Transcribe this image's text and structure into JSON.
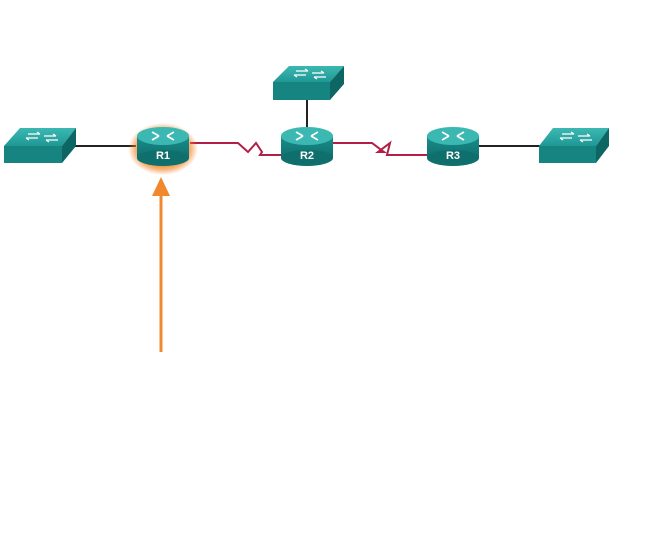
{
  "diagram": {
    "routers": [
      {
        "id": "r1",
        "label": "R1",
        "highlighted": true
      },
      {
        "id": "r2",
        "label": "R2",
        "highlighted": false
      },
      {
        "id": "r3",
        "label": "R3",
        "highlighted": false
      }
    ],
    "colors": {
      "device_teal": "#178a8a",
      "device_teal_top": "#2fa9a6",
      "serial_link": "#b21e46",
      "ethernet_link": "#222222",
      "highlight_glow": "#f07d1a",
      "arrow": "#f0882d"
    }
  }
}
